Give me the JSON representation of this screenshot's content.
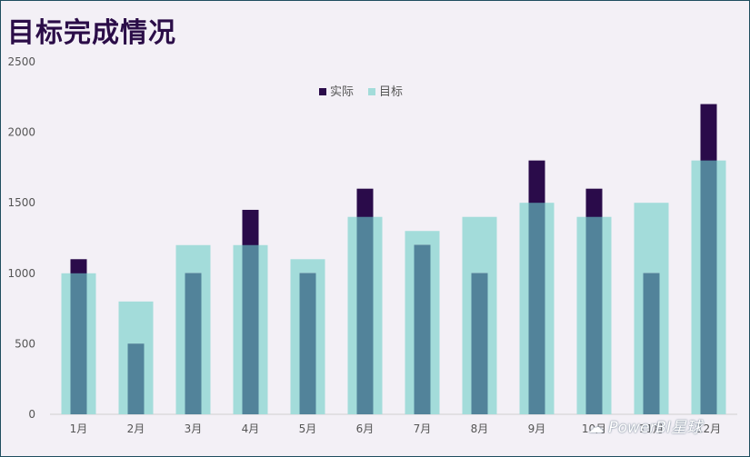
{
  "chart_data": {
    "type": "bar",
    "title": "目标完成情况",
    "categories": [
      "1月",
      "2月",
      "3月",
      "4月",
      "5月",
      "6月",
      "7月",
      "8月",
      "9月",
      "10月",
      "11月",
      "12月"
    ],
    "series": [
      {
        "name": "实际",
        "values": [
          1100,
          500,
          1000,
          1450,
          1000,
          1600,
          1200,
          1000,
          1800,
          1600,
          1000,
          2200
        ]
      },
      {
        "name": "目标",
        "values": [
          1000,
          800,
          1200,
          1200,
          1100,
          1400,
          1300,
          1400,
          1500,
          1400,
          1500,
          1800
        ]
      }
    ],
    "yticks": [
      0,
      500,
      1000,
      1500,
      2000,
      2500
    ],
    "ylim": [
      0,
      2500
    ],
    "legend_position": "top-center",
    "colors": {
      "actual": "#2a0b4a",
      "target": "#a3dcda",
      "overlap": "#52839a"
    }
  },
  "watermark": "PowerBI星球"
}
